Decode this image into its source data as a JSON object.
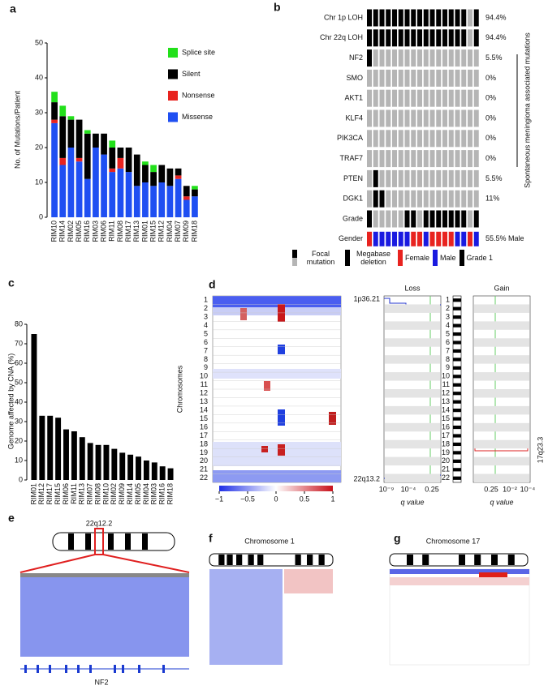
{
  "panel_labels": [
    "a",
    "b",
    "c",
    "d",
    "e",
    "f",
    "g"
  ],
  "chart_data": [
    {
      "type": "stacked_bar",
      "ylabel": "No. of Mutations/Patient",
      "categories": [
        "RIM10",
        "RIM14",
        "RIM02",
        "RIM05",
        "RIM16",
        "RIM03",
        "RIM06",
        "RIM11",
        "RIM08",
        "RIM17",
        "RIM13",
        "RIM01",
        "RIM15",
        "RIM12",
        "RIM04",
        "RIM07",
        "RIM09",
        "RIM18"
      ],
      "series": [
        {
          "name": "Missense",
          "color": "#1f4ff2",
          "values": [
            27,
            15,
            20,
            16,
            11,
            20,
            18,
            13,
            14,
            13,
            9,
            10,
            9,
            10,
            9,
            11,
            5,
            6
          ]
        },
        {
          "name": "Nonsense",
          "color": "#e8231f",
          "values": [
            1,
            2,
            0,
            1,
            0,
            0,
            0,
            1,
            3,
            0,
            0,
            0,
            0,
            0,
            0,
            1,
            1,
            0
          ]
        },
        {
          "name": "Silent",
          "color": "#000000",
          "values": [
            5,
            12,
            8,
            11,
            13,
            4,
            6,
            6,
            3,
            7,
            9,
            5,
            4,
            5,
            5,
            2,
            3,
            2
          ]
        },
        {
          "name": "Splice site",
          "color": "#22e01a",
          "values": [
            3,
            3,
            1,
            0,
            1,
            0,
            0,
            2,
            0,
            0,
            0,
            1,
            2,
            0,
            0,
            0,
            0,
            1
          ]
        }
      ],
      "ylim": [
        0,
        50
      ],
      "yticks": [
        0,
        10,
        20,
        30,
        40,
        50
      ]
    },
    {
      "type": "bar",
      "ylabel": "Genome affected by CNA (%)",
      "color": "#000000",
      "categories": [
        "RIM01",
        "RIM12",
        "RIM17",
        "RIM15",
        "RIM06",
        "RIM11",
        "RIM13",
        "RIM07",
        "RIM08",
        "RIM10",
        "RIM02",
        "RIM09",
        "RIM14",
        "RIM05",
        "RIM04",
        "RIM03",
        "RIM16",
        "RIM18"
      ],
      "values": [
        75,
        33,
        33,
        32,
        26,
        25,
        22,
        19,
        18,
        18,
        16,
        14,
        13,
        12,
        10,
        9,
        7,
        6
      ],
      "ylim": [
        0,
        80
      ],
      "yticks": [
        0,
        10,
        20,
        30,
        40,
        50,
        60,
        70,
        80
      ]
    }
  ],
  "oncoprint": {
    "cell_colors": [
      "#b5b5b5",
      "#000000",
      "#e8231f",
      "#1a1ae0"
    ],
    "rows": [
      {
        "label": "Chr 1p LOH",
        "pct": "94.4%",
        "cells": [
          1,
          1,
          1,
          1,
          1,
          1,
          1,
          1,
          1,
          1,
          1,
          1,
          1,
          1,
          1,
          1,
          0,
          1
        ]
      },
      {
        "label": "Chr 22q LOH",
        "pct": "94.4%",
        "cells": [
          1,
          1,
          1,
          1,
          1,
          1,
          1,
          1,
          1,
          1,
          1,
          1,
          1,
          1,
          1,
          1,
          0,
          1
        ]
      },
      {
        "label": "NF2",
        "pct": "5.5%",
        "cells": [
          1,
          0,
          0,
          0,
          0,
          0,
          0,
          0,
          0,
          0,
          0,
          0,
          0,
          0,
          0,
          0,
          0,
          0
        ]
      },
      {
        "label": "SMO",
        "pct": "0%",
        "cells": [
          0,
          0,
          0,
          0,
          0,
          0,
          0,
          0,
          0,
          0,
          0,
          0,
          0,
          0,
          0,
          0,
          0,
          0
        ]
      },
      {
        "label": "AKT1",
        "pct": "0%",
        "cells": [
          0,
          0,
          0,
          0,
          0,
          0,
          0,
          0,
          0,
          0,
          0,
          0,
          0,
          0,
          0,
          0,
          0,
          0
        ]
      },
      {
        "label": "KLF4",
        "pct": "0%",
        "cells": [
          0,
          0,
          0,
          0,
          0,
          0,
          0,
          0,
          0,
          0,
          0,
          0,
          0,
          0,
          0,
          0,
          0,
          0
        ]
      },
      {
        "label": "PIK3CA",
        "pct": "0%",
        "cells": [
          0,
          0,
          0,
          0,
          0,
          0,
          0,
          0,
          0,
          0,
          0,
          0,
          0,
          0,
          0,
          0,
          0,
          0
        ]
      },
      {
        "label": "TRAF7",
        "pct": "0%",
        "cells": [
          0,
          0,
          0,
          0,
          0,
          0,
          0,
          0,
          0,
          0,
          0,
          0,
          0,
          0,
          0,
          0,
          0,
          0
        ]
      },
      {
        "label": "PTEN",
        "pct": "5.5%",
        "cells": [
          0,
          1,
          0,
          0,
          0,
          0,
          0,
          0,
          0,
          0,
          0,
          0,
          0,
          0,
          0,
          0,
          0,
          0
        ]
      },
      {
        "label": "DGK1",
        "pct": "11%",
        "cells": [
          0,
          1,
          1,
          0,
          0,
          0,
          0,
          0,
          0,
          0,
          0,
          0,
          0,
          0,
          0,
          0,
          0,
          0
        ]
      },
      {
        "label": "Grade",
        "pct": null,
        "cells": [
          1,
          0,
          0,
          0,
          0,
          0,
          1,
          1,
          0,
          1,
          1,
          1,
          1,
          1,
          1,
          1,
          0,
          1
        ]
      },
      {
        "label": "Gender",
        "pct": "55.5% Male",
        "cells": [
          2,
          3,
          3,
          3,
          3,
          3,
          3,
          2,
          2,
          3,
          2,
          2,
          2,
          2,
          3,
          3,
          2,
          3
        ]
      }
    ],
    "side_label": "Spontaneous meningioma associated mutations",
    "legend": [
      "Focal mutation",
      "Megabase deletion",
      "Female",
      "Male",
      "Grade 1"
    ]
  },
  "cna_heatmap": {
    "ylabel": "Chromosomes",
    "chromosomes": [
      "1",
      "2",
      "3",
      "4",
      "5",
      "6",
      "7",
      "8",
      "9",
      "10",
      "11",
      "12",
      "13",
      "14",
      "15",
      "16",
      "17",
      "18",
      "19",
      "20",
      "21",
      "22"
    ],
    "colorbar_ticks": [
      {
        "value": -1,
        "label": "−1"
      },
      {
        "value": -0.5,
        "label": "−0.5"
      },
      0,
      0.5,
      1
    ],
    "loss": {
      "title": "Loss",
      "top_label": "1p36.21",
      "bottom_label": "22q13.2",
      "xtick_labels": [
        "10⁻⁹",
        "10⁻⁴",
        "0.25"
      ],
      "xlabel": "q value"
    },
    "gain": {
      "title": "Gain",
      "annotation": "17q23.3",
      "xtick_labels": [
        "0.25",
        "10⁻²",
        "10⁻⁴"
      ]
    }
  },
  "panel_e": {
    "band": "22q12.2",
    "gene": "NF2"
  },
  "panel_f": {
    "title": "Chromosome 1"
  },
  "panel_g": {
    "title": "Chromosome 17"
  }
}
